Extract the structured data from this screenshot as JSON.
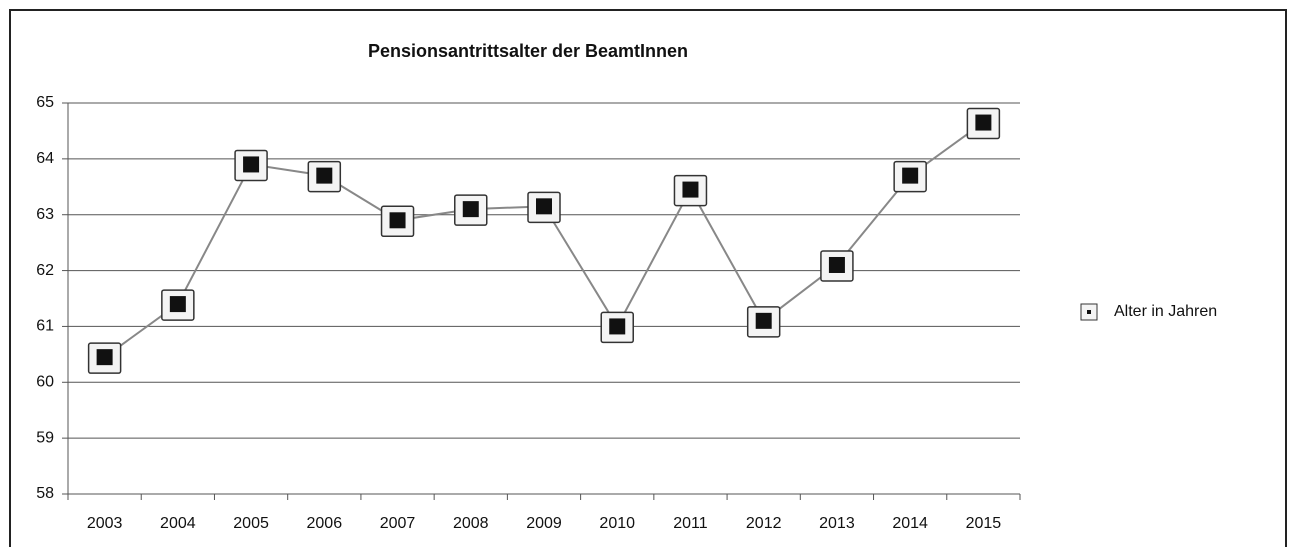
{
  "chart_data": {
    "type": "line",
    "title": "Pensionsantrittsalter der BeamtInnen",
    "categories": [
      "2003",
      "2004",
      "2005",
      "2006",
      "2007",
      "2008",
      "2009",
      "2010",
      "2011",
      "2012",
      "2013",
      "2014",
      "2015"
    ],
    "series": [
      {
        "name": "Alter in Jahren",
        "color": "#111111",
        "values": [
          60.45,
          61.4,
          63.9,
          63.7,
          62.9,
          63.1,
          63.15,
          61.0,
          63.45,
          61.1,
          62.1,
          63.7,
          64.65
        ]
      }
    ],
    "ylim": [
      58,
      65
    ],
    "yticks": [
      58,
      59,
      60,
      61,
      62,
      63,
      64,
      65
    ],
    "grid": true,
    "legend": "right"
  }
}
